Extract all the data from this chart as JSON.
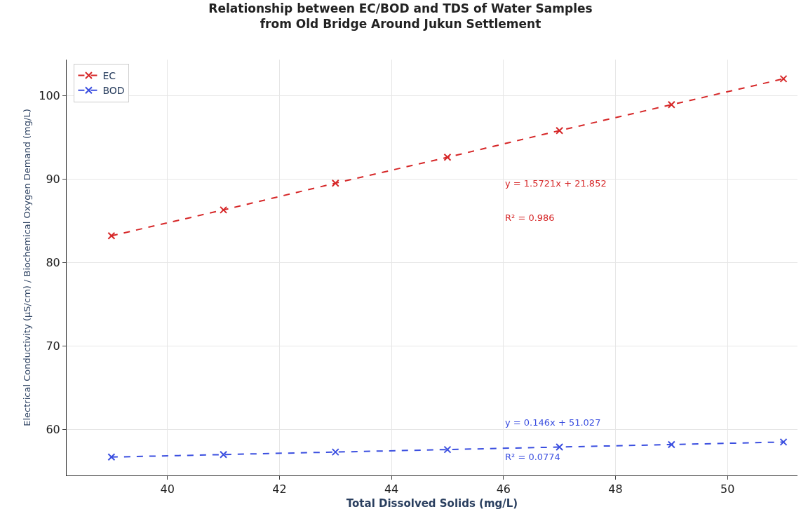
{
  "chart_data": {
    "type": "line",
    "title": "Relationship between EC/BOD and TDS of Water Samples\nfrom Old Bridge Around Jukun Settlement",
    "xlabel": "Total Dissolved Solids (mg/L)",
    "ylabel": "Electrical Conductivity (µS/cm) / Biochemical Oxygen Demand (mg/L)",
    "x": [
      39,
      41,
      43,
      45,
      47,
      49,
      51
    ],
    "series": [
      {
        "name": "EC",
        "color": "#d62728",
        "values": [
          83.2,
          86.3,
          89.5,
          92.6,
          95.8,
          98.9,
          102.0
        ]
      },
      {
        "name": "BOD",
        "color": "#3b4fe0",
        "values": [
          56.7,
          57.0,
          57.3,
          57.6,
          57.9,
          58.2,
          58.5
        ]
      }
    ],
    "annotations": [
      "y = 1.5721x + 21.852",
      "R² = 0.986",
      "y = 0.146x + 51.027",
      "R² = 0.0774"
    ],
    "xlim": [
      38.2,
      51.25
    ],
    "xticks": [
      40,
      42,
      44,
      46,
      48,
      50
    ],
    "ylim": [
      54.5,
      104.3
    ],
    "yticks": [
      60,
      70,
      80,
      90,
      100
    ],
    "grid": true,
    "legend": "top left",
    "marker": "cross",
    "line_style": "dashed"
  }
}
